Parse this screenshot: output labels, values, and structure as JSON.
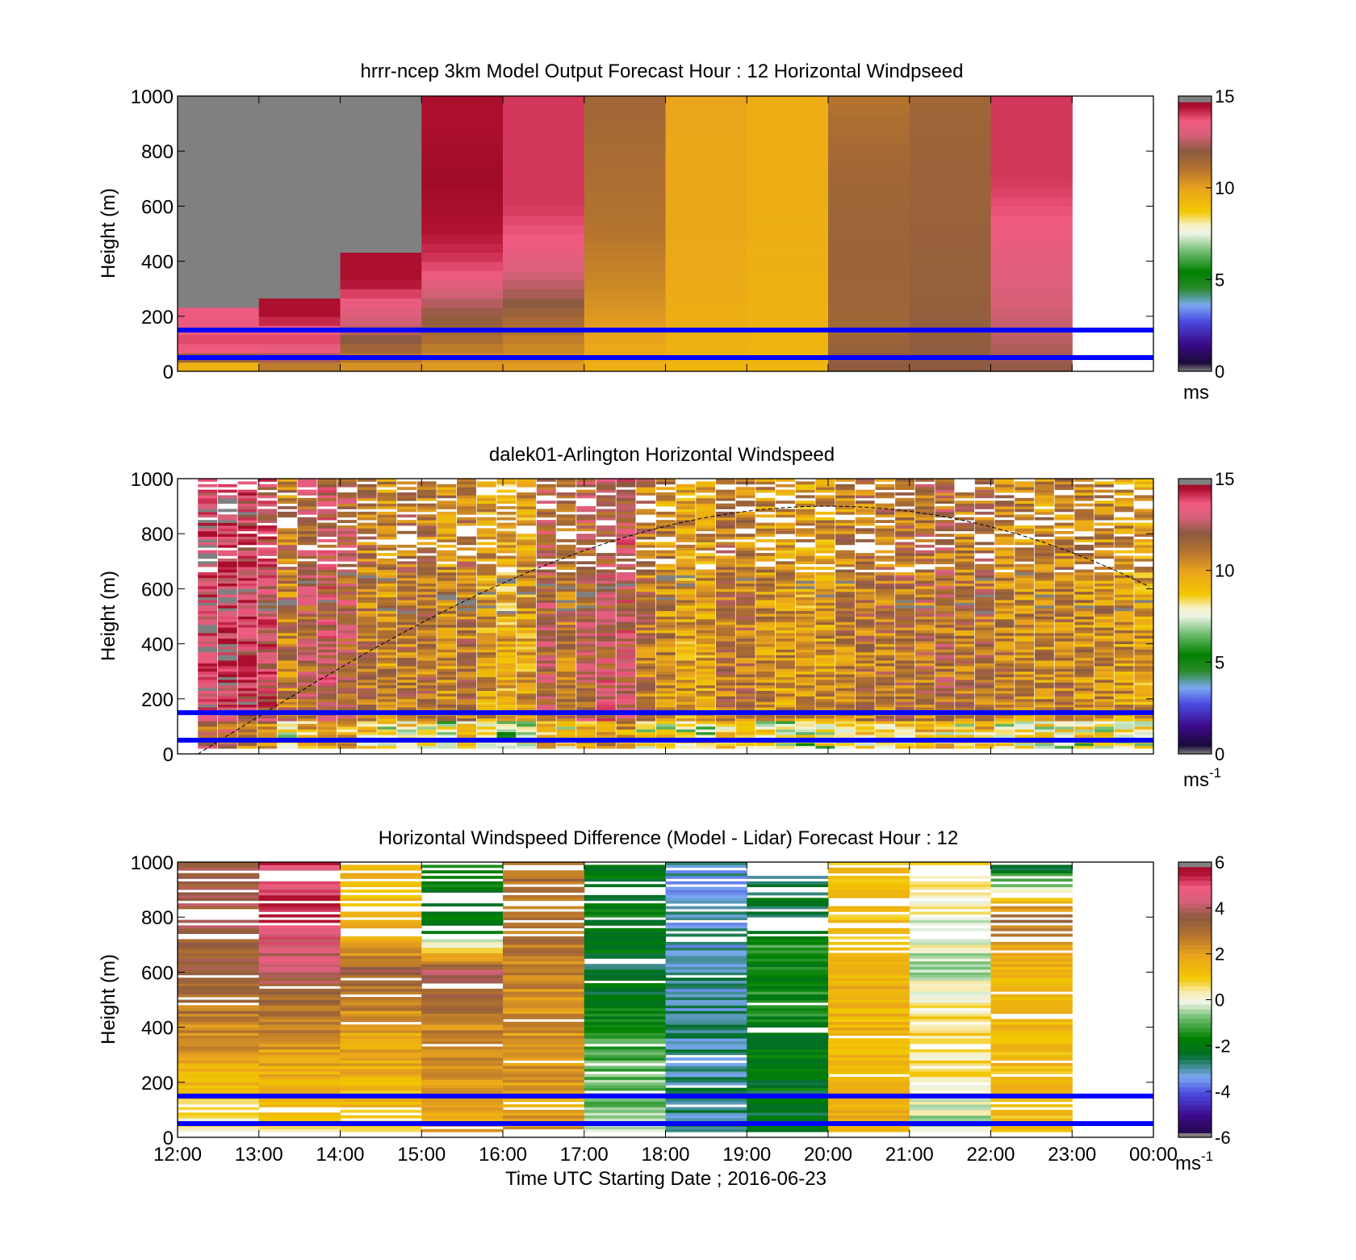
{
  "figure": {
    "xlabel": "Time UTC  Starting Date ; 2016-06-23",
    "time_ticks": [
      "12:00",
      "13:00",
      "14:00",
      "15:00",
      "16:00",
      "17:00",
      "18:00",
      "19:00",
      "20:00",
      "21:00",
      "22:00",
      "23:00",
      "00:00"
    ],
    "reference_lines_m": [
      50,
      150
    ],
    "reference_line_color": "#0000ff"
  },
  "chart_data": [
    {
      "type": "heatmap",
      "title": "hrrr-ncep 3km Model Output   Forecast Hour : 12 Horizontal Windpseed",
      "ylabel": "Height (m)",
      "ylim": [
        0,
        1000
      ],
      "yticks": [
        "0",
        "200",
        "400",
        "600",
        "800",
        "1000"
      ],
      "colorbar": {
        "range": [
          0,
          15
        ],
        "ticks": [
          "0",
          "5",
          "10",
          "15"
        ],
        "unit": "ms",
        "unit_sup": ""
      },
      "columns": [
        {
          "hour": "12:00",
          "top_m": 200,
          "profile": [
            [
              0,
              10
            ],
            [
              30,
              9
            ],
            [
              60,
              13
            ],
            [
              100,
              14
            ],
            [
              150,
              13.5
            ]
          ]
        },
        {
          "hour": "13:00",
          "top_m": 250,
          "profile": [
            [
              0,
              10
            ],
            [
              40,
              12
            ],
            [
              100,
              14
            ],
            [
              150,
              13.5
            ],
            [
              200,
              14.5
            ]
          ]
        },
        {
          "hour": "14:00",
          "top_m": 400,
          "profile": [
            [
              0,
              10
            ],
            [
              50,
              11
            ],
            [
              150,
              12.5
            ],
            [
              250,
              13.5
            ],
            [
              330,
              14.5
            ]
          ]
        },
        {
          "hour": "15:00",
          "top_m": 1000,
          "profile": [
            [
              0,
              10
            ],
            [
              100,
              11
            ],
            [
              250,
              12.5
            ],
            [
              400,
              14
            ],
            [
              550,
              14.5
            ],
            [
              700,
              15
            ],
            [
              900,
              14.5
            ]
          ]
        },
        {
          "hour": "16:00",
          "top_m": 1000,
          "profile": [
            [
              0,
              10
            ],
            [
              150,
              11
            ],
            [
              300,
              12.5
            ],
            [
              450,
              13.5
            ],
            [
              600,
              14
            ],
            [
              800,
              14
            ],
            [
              1000,
              14
            ]
          ]
        },
        {
          "hour": "17:00",
          "top_m": 1000,
          "profile": [
            [
              0,
              9.5
            ],
            [
              150,
              10
            ],
            [
              300,
              10.5
            ],
            [
              500,
              11
            ],
            [
              700,
              11.2
            ],
            [
              1000,
              11.5
            ]
          ]
        },
        {
          "hour": "18:00",
          "top_m": 1000,
          "profile": [
            [
              0,
              9.3
            ],
            [
              200,
              9.6
            ],
            [
              500,
              9.8
            ],
            [
              800,
              9.8
            ],
            [
              1000,
              9.9
            ]
          ]
        },
        {
          "hour": "19:00",
          "top_m": 1000,
          "profile": [
            [
              0,
              9.3
            ],
            [
              300,
              9.5
            ],
            [
              600,
              9.6
            ],
            [
              1000,
              9.6
            ]
          ]
        },
        {
          "hour": "20:00",
          "top_m": 1000,
          "profile": [
            [
              0,
              12
            ],
            [
              150,
              11.5
            ],
            [
              400,
              11.6
            ],
            [
              700,
              11.5
            ],
            [
              900,
              11.2
            ],
            [
              1000,
              11
            ]
          ]
        },
        {
          "hour": "21:00",
          "top_m": 1000,
          "profile": [
            [
              0,
              12
            ],
            [
              200,
              11.8
            ],
            [
              500,
              11.7
            ],
            [
              800,
              11.6
            ],
            [
              1000,
              11.5
            ]
          ]
        },
        {
          "hour": "22:00",
          "top_m": 1000,
          "profile": [
            [
              0,
              12
            ],
            [
              100,
              12.5
            ],
            [
              300,
              13
            ],
            [
              500,
              13.5
            ],
            [
              700,
              14
            ],
            [
              900,
              14
            ],
            [
              1000,
              14
            ]
          ]
        }
      ]
    },
    {
      "type": "heatmap",
      "title": "dalek01-Arlington  Horizontal Windspeed",
      "ylabel": "Height (m)",
      "ylim": [
        0,
        1000
      ],
      "yticks": [
        "0",
        "200",
        "400",
        "600",
        "800",
        "1000"
      ],
      "colorbar": {
        "range": [
          0,
          15
        ],
        "ticks": [
          "0",
          "5",
          "10",
          "15"
        ],
        "unit": "ms",
        "unit_sup": "-1"
      },
      "column_step_h": 0.25,
      "column_means": [
        14,
        14,
        13.5,
        13,
        11,
        12,
        12.5,
        12,
        11,
        10.5,
        11,
        11,
        10.5,
        11,
        10,
        9.5,
        10,
        12,
        11,
        12,
        12.5,
        12.5,
        11,
        10.5,
        10,
        10,
        11,
        11,
        10.5,
        10.2,
        10,
        10.2,
        10.8,
        11,
        11,
        11.2,
        11.2,
        11.5,
        11,
        11.2,
        10.8,
        10.5,
        10.5,
        10.8,
        10.5,
        10.5,
        10.2,
        10
      ],
      "column_tops_m": [
        1000,
        1000,
        1000,
        1000,
        1000,
        1000,
        1000,
        1000,
        1000,
        1000,
        1000,
        1000,
        1000,
        1000,
        1000,
        1000,
        1000,
        1000,
        1000,
        1000,
        1000,
        1000,
        1000,
        1000,
        1000,
        1000,
        1000,
        1000,
        1000,
        1000,
        1000,
        1000,
        1000,
        1000,
        1000,
        1000,
        1000,
        1000,
        1000,
        1000,
        1000,
        1000,
        1000,
        1000,
        1000,
        1000,
        1000,
        1000
      ],
      "boundary_layer_curve": {
        "start_hour": 0.25,
        "peak_hour": 8.0,
        "end_hour": 12.0,
        "peak_m": 900,
        "end_m": 600
      }
    },
    {
      "type": "heatmap",
      "title": "Horizontal Windspeed Difference (Model - Lidar) Forecast Hour : 12",
      "ylabel": "Height (m)",
      "ylim": [
        0,
        1000
      ],
      "yticks": [
        "0",
        "200",
        "400",
        "600",
        "800",
        "1000"
      ],
      "colorbar": {
        "range": [
          -6,
          6
        ],
        "ticks": [
          "-6",
          "-4",
          "-2",
          "0",
          "2",
          "4",
          "6"
        ],
        "unit": "ms",
        "unit_sup": "-1"
      },
      "columns": [
        {
          "hour": "12:00",
          "profile": [
            [
              0,
              0
            ],
            [
              150,
              1
            ],
            [
              300,
              2
            ],
            [
              500,
              3
            ],
            [
              650,
              3.5
            ]
          ]
        },
        {
          "hour": "13:00",
          "profile": [
            [
              0,
              0.5
            ],
            [
              200,
              1.5
            ],
            [
              400,
              2.5
            ],
            [
              600,
              4
            ],
            [
              800,
              5
            ]
          ]
        },
        {
          "hour": "14:00",
          "profile": [
            [
              0,
              1
            ],
            [
              200,
              1.5
            ],
            [
              400,
              2
            ],
            [
              600,
              3.5
            ],
            [
              700,
              1.5
            ]
          ]
        },
        {
          "hour": "15:00",
          "profile": [
            [
              0,
              2
            ],
            [
              200,
              2.2
            ],
            [
              400,
              2.5
            ],
            [
              600,
              4
            ],
            [
              750,
              -2
            ]
          ]
        },
        {
          "hour": "16:00",
          "profile": [
            [
              0,
              2
            ],
            [
              200,
              2
            ],
            [
              400,
              2.2
            ],
            [
              600,
              2.5
            ],
            [
              800,
              3
            ]
          ]
        },
        {
          "hour": "17:00",
          "profile": [
            [
              0,
              -0.5
            ],
            [
              200,
              -0.8
            ],
            [
              400,
              -1.5
            ],
            [
              600,
              -2.5
            ],
            [
              700,
              -2
            ]
          ]
        },
        {
          "hour": "18:00",
          "profile": [
            [
              0,
              -2.8
            ],
            [
              200,
              -2.8
            ],
            [
              400,
              -2.9
            ],
            [
              600,
              -3
            ],
            [
              700,
              -3.2
            ]
          ]
        },
        {
          "hour": "19:00",
          "profile": [
            [
              0,
              -2.5
            ],
            [
              200,
              -2
            ],
            [
              400,
              -1.8
            ],
            [
              700,
              -1.5
            ],
            [
              850,
              -2.5
            ]
          ]
        },
        {
          "hour": "20:00",
          "profile": [
            [
              0,
              1.5
            ],
            [
              300,
              1.6
            ],
            [
              600,
              1.4
            ],
            [
              850,
              1.2
            ]
          ]
        },
        {
          "hour": "21:00",
          "profile": [
            [
              0,
              -0.5
            ],
            [
              200,
              0.5
            ],
            [
              400,
              0.7
            ],
            [
              600,
              -0.3
            ],
            [
              800,
              0.2
            ],
            [
              1000,
              1
            ]
          ]
        },
        {
          "hour": "22:00",
          "profile": [
            [
              0,
              1
            ],
            [
              200,
              1.2
            ],
            [
              400,
              1.5
            ],
            [
              600,
              1.5
            ],
            [
              800,
              3
            ],
            [
              1000,
              -3
            ]
          ]
        }
      ]
    }
  ]
}
